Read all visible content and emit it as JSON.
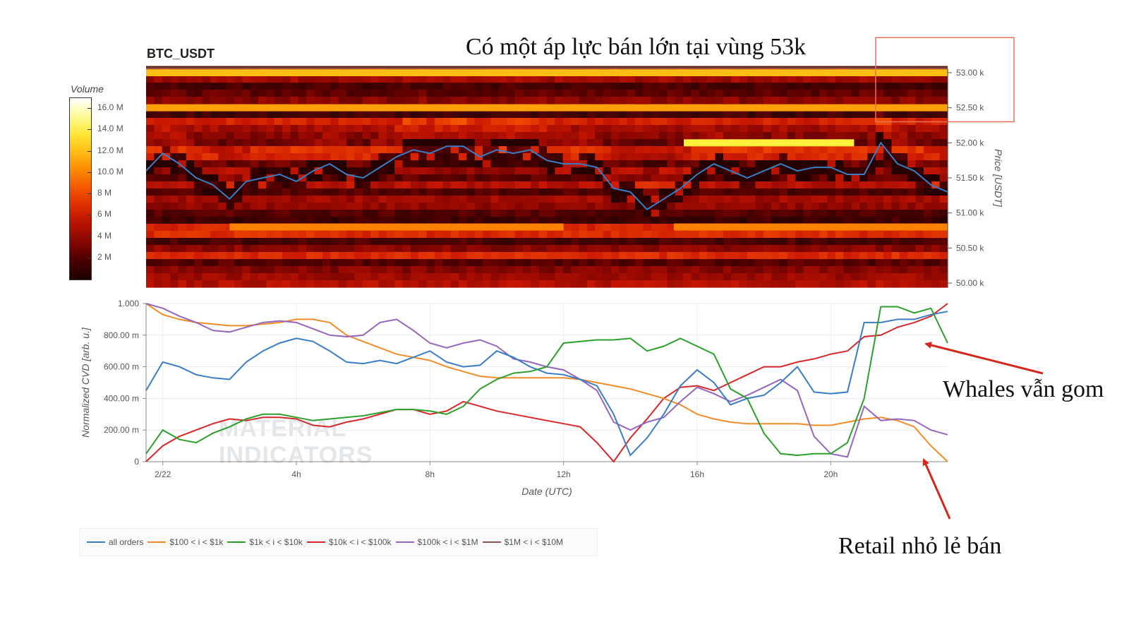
{
  "symbol": "BTC_USDT",
  "headline": "Có một áp lực bán lớn tại vùng 53k",
  "annotations": {
    "whales": "Whales vẫn gom",
    "retail": "Retail nhỏ lẻ bán"
  },
  "watermark": [
    "MATERIAL",
    "INDICATORS"
  ],
  "colors": {
    "all_orders": "#3a7dc4",
    "r100_1k": "#f28c28",
    "r1k_10k": "#2ca02c",
    "r10k_100k": "#d62728",
    "r100k_1m": "#9467bd",
    "r1m_10m": "#8c564b",
    "annotation_arrow": "#d4281c",
    "highlight_box": "#e8705a"
  },
  "chart_data": [
    {
      "type": "heatmap",
      "title": "BTC_USDT",
      "colorbar": {
        "title": "Volume",
        "ticks": [
          "16.0 M",
          "14.0 M",
          "12.0 M",
          "10.0 M",
          "8 M",
          "6 M",
          "4 M",
          "2 M"
        ],
        "values": [
          16,
          14,
          12,
          10,
          8,
          6,
          4,
          2
        ],
        "range": [
          0,
          17
        ]
      },
      "yaxis": {
        "label": "Price [USDT]",
        "ticks": [
          "53.00 k",
          "52.50 k",
          "52.00 k",
          "51.50 k",
          "51.00 k",
          "50.50 k",
          "50.00 k"
        ],
        "values": [
          53000,
          52500,
          52000,
          51500,
          51000,
          50500,
          50000
        ],
        "range": [
          49940,
          53060
        ]
      },
      "xaxis": {
        "range_hours": [
          -1.5,
          22.5
        ]
      },
      "highlight_box_price_range": [
        52300,
        53500
      ],
      "price_line": {
        "x_hours": [
          -1.5,
          -1,
          -0.5,
          0,
          0.5,
          1,
          1.5,
          2,
          2.5,
          3,
          3.5,
          4,
          4.5,
          5,
          5.5,
          6,
          6.5,
          7,
          7.5,
          8,
          8.5,
          9,
          9.5,
          10,
          10.5,
          11,
          11.5,
          12,
          12.5,
          13,
          13.5,
          14,
          14.5,
          15,
          15.5,
          16,
          16.5,
          17,
          17.5,
          18,
          18.5,
          19,
          19.5,
          20,
          20.5,
          21,
          21.5,
          22,
          22.5
        ],
        "prices": [
          51600,
          51850,
          51700,
          51500,
          51400,
          51200,
          51450,
          51500,
          51550,
          51450,
          51600,
          51700,
          51550,
          51500,
          51650,
          51800,
          51900,
          51850,
          51950,
          51950,
          51800,
          51900,
          51850,
          51900,
          51750,
          51700,
          51700,
          51650,
          51350,
          51300,
          51050,
          51200,
          51350,
          51550,
          51700,
          51600,
          51500,
          51600,
          51700,
          51600,
          51650,
          51650,
          51550,
          51550,
          52000,
          51700,
          51600,
          51400,
          51300
        ]
      },
      "strong_levels": [
        {
          "price": 53000,
          "volume": 12,
          "from_hours": -1.5,
          "to_hours": 22.5
        },
        {
          "price": 52500,
          "volume": 11,
          "from_hours": -1.5,
          "to_hours": 22.5
        },
        {
          "price": 52000,
          "volume": 14,
          "from_hours": 14.6,
          "to_hours": 19.7
        },
        {
          "price": 50800,
          "volume": 10,
          "from_hours": 1,
          "to_hours": 11
        },
        {
          "price": 50800,
          "volume": 10,
          "from_hours": 14.3,
          "to_hours": 22.5
        }
      ]
    },
    {
      "type": "line",
      "xlabel": "Date (UTC)",
      "ylabel": "Normalized CVD [arb. u.]",
      "x_ticks": [
        "2/22",
        "4h",
        "8h",
        "12h",
        "16h",
        "20h"
      ],
      "x_tick_hours": [
        0,
        4,
        8,
        12,
        16,
        20
      ],
      "xlim_hours": [
        -0.5,
        23.5
      ],
      "y_ticks": [
        "0",
        "200.00 m",
        "400.00 m",
        "600.00 m",
        "800.00 m",
        "1.000"
      ],
      "y_tick_values": [
        0,
        0.2,
        0.4,
        0.6,
        0.8,
        1.0
      ],
      "ylim": [
        0,
        1.0
      ],
      "x_hours": [
        -0.5,
        0,
        0.5,
        1,
        1.5,
        2,
        2.5,
        3,
        3.5,
        4,
        4.5,
        5,
        5.5,
        6,
        6.5,
        7,
        7.5,
        8,
        8.5,
        9,
        9.5,
        10,
        10.5,
        11,
        11.5,
        12,
        12.5,
        13,
        13.5,
        14,
        14.5,
        15,
        15.5,
        16,
        16.5,
        17,
        17.5,
        18,
        18.5,
        19,
        19.5,
        20,
        20.5,
        21,
        21.5,
        22,
        22.5,
        23,
        23.5
      ],
      "series": [
        {
          "name": "all orders",
          "values": [
            0.45,
            0.63,
            0.6,
            0.55,
            0.53,
            0.52,
            0.63,
            0.7,
            0.75,
            0.78,
            0.76,
            0.7,
            0.63,
            0.62,
            0.64,
            0.62,
            0.66,
            0.7,
            0.63,
            0.6,
            0.61,
            0.7,
            0.66,
            0.6,
            0.56,
            0.55,
            0.52,
            0.48,
            0.3,
            0.04,
            0.15,
            0.3,
            0.48,
            0.58,
            0.5,
            0.36,
            0.4,
            0.42,
            0.5,
            0.6,
            0.44,
            0.43,
            0.44,
            0.88,
            0.88,
            0.9,
            0.9,
            0.93,
            0.95
          ]
        },
        {
          "name": "$100 < i < $1k",
          "values": [
            1.0,
            0.93,
            0.9,
            0.88,
            0.87,
            0.86,
            0.86,
            0.87,
            0.88,
            0.9,
            0.9,
            0.88,
            0.8,
            0.76,
            0.72,
            0.68,
            0.66,
            0.64,
            0.6,
            0.57,
            0.54,
            0.53,
            0.53,
            0.53,
            0.53,
            0.53,
            0.52,
            0.5,
            0.48,
            0.46,
            0.43,
            0.4,
            0.36,
            0.3,
            0.27,
            0.25,
            0.24,
            0.24,
            0.24,
            0.24,
            0.23,
            0.23,
            0.25,
            0.27,
            0.28,
            0.26,
            0.22,
            0.1,
            0.0
          ]
        },
        {
          "name": "$1k < i < $10k",
          "values": [
            0.05,
            0.2,
            0.14,
            0.12,
            0.18,
            0.22,
            0.27,
            0.3,
            0.3,
            0.28,
            0.26,
            0.27,
            0.28,
            0.29,
            0.31,
            0.33,
            0.33,
            0.32,
            0.3,
            0.35,
            0.46,
            0.52,
            0.56,
            0.57,
            0.6,
            0.75,
            0.76,
            0.77,
            0.77,
            0.78,
            0.7,
            0.73,
            0.78,
            0.73,
            0.68,
            0.46,
            0.4,
            0.18,
            0.05,
            0.04,
            0.05,
            0.05,
            0.12,
            0.4,
            0.98,
            0.98,
            0.94,
            0.97,
            0.75
          ]
        },
        {
          "name": "$10k < i < $100k",
          "values": [
            0.0,
            0.1,
            0.16,
            0.2,
            0.24,
            0.27,
            0.26,
            0.28,
            0.28,
            0.27,
            0.23,
            0.22,
            0.25,
            0.27,
            0.3,
            0.33,
            0.33,
            0.3,
            0.32,
            0.38,
            0.35,
            0.32,
            0.3,
            0.28,
            0.26,
            0.24,
            0.22,
            0.12,
            0.0,
            0.15,
            0.27,
            0.4,
            0.47,
            0.48,
            0.45,
            0.5,
            0.55,
            0.6,
            0.6,
            0.63,
            0.65,
            0.68,
            0.7,
            0.79,
            0.8,
            0.85,
            0.88,
            0.92,
            1.0
          ]
        },
        {
          "name": "$100k < i < $1M",
          "values": [
            1.0,
            0.97,
            0.92,
            0.88,
            0.83,
            0.82,
            0.85,
            0.88,
            0.89,
            0.88,
            0.84,
            0.8,
            0.79,
            0.8,
            0.88,
            0.9,
            0.83,
            0.75,
            0.72,
            0.75,
            0.77,
            0.73,
            0.65,
            0.63,
            0.6,
            0.58,
            0.52,
            0.45,
            0.25,
            0.2,
            0.25,
            0.28,
            0.38,
            0.47,
            0.43,
            0.38,
            0.42,
            0.47,
            0.52,
            0.45,
            0.16,
            0.05,
            0.03,
            0.35,
            0.26,
            0.27,
            0.26,
            0.2,
            0.17
          ]
        },
        {
          "name": "$1M < i < $10M",
          "values": []
        }
      ]
    }
  ]
}
